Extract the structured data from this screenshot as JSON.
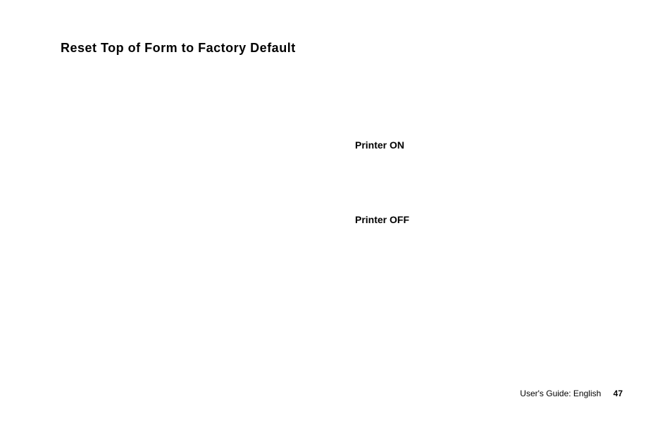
{
  "document": {
    "background_color": "#ffffff",
    "text_color": "#000000",
    "heading": {
      "text": "Reset Top of Form to Factory Default",
      "font_size_pt": 14,
      "font_weight": 900
    },
    "states": {
      "on": {
        "label": "Printer ON",
        "font_size_pt": 11,
        "font_weight": 700
      },
      "off": {
        "label": "Printer OFF",
        "font_size_pt": 11,
        "font_weight": 700
      }
    },
    "footer": {
      "guide_text": "User's Guide:  English",
      "page_number": "47",
      "font_size_pt": 9
    }
  }
}
